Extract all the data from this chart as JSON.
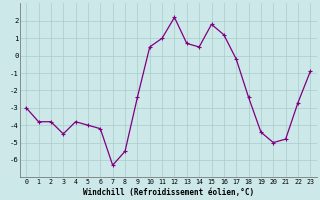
{
  "x": [
    0,
    1,
    2,
    3,
    4,
    5,
    6,
    7,
    8,
    9,
    10,
    11,
    12,
    13,
    14,
    15,
    16,
    17,
    18,
    19,
    20,
    21,
    22,
    23
  ],
  "y": [
    -3.0,
    -3.8,
    -3.8,
    -4.5,
    -3.8,
    -4.0,
    -4.2,
    -6.3,
    -5.5,
    -2.4,
    0.5,
    1.0,
    2.2,
    0.7,
    0.5,
    1.8,
    1.2,
    -0.2,
    -2.4,
    -4.4,
    -5.0,
    -4.8,
    -2.7,
    -0.9
  ],
  "line_color": "#800080",
  "marker": "+",
  "marker_size": 3,
  "marker_lw": 0.8,
  "line_width": 0.9,
  "bg_color": "#cce8e8",
  "grid_color": "#aacccc",
  "xlabel": "Windchill (Refroidissement éolien,°C)",
  "xlabel_fontsize": 5.5,
  "xtick_fontsize": 4.8,
  "ytick_fontsize": 5.2,
  "xlim": [
    -0.5,
    23.5
  ],
  "ylim": [
    -7,
    3
  ],
  "yticks": [
    -6,
    -5,
    -4,
    -3,
    -2,
    -1,
    0,
    1,
    2
  ]
}
